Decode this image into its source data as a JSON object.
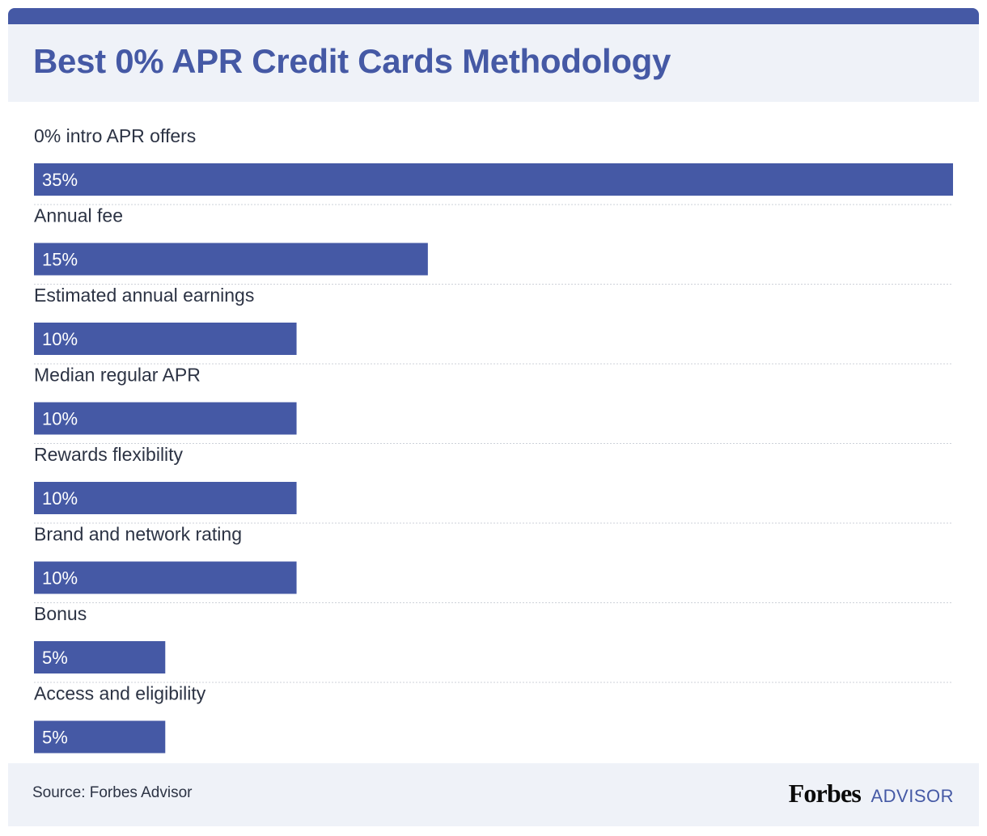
{
  "title": "Best 0% APR Credit Cards Methodology",
  "footer": {
    "source": "Source: Forbes Advisor",
    "brand_main": "Forbes",
    "brand_sub": "ADVISOR"
  },
  "colors": {
    "accent": "#4559a5",
    "panel": "#eff2f8",
    "text": "#2c3344",
    "divider": "#cdd1d9"
  },
  "chart_data": {
    "type": "bar",
    "orientation": "horizontal",
    "categories": [
      "0% intro APR offers",
      "Annual fee",
      "Estimated annual earnings",
      "Median regular APR",
      "Rewards flexibility",
      "Brand and network rating",
      "Bonus",
      "Access and eligibility"
    ],
    "values": [
      35,
      15,
      10,
      10,
      10,
      10,
      5,
      5
    ],
    "value_labels": [
      "35%",
      "15%",
      "10%",
      "10%",
      "10%",
      "10%",
      "5%",
      "5%"
    ],
    "unit": "%",
    "xlim": [
      0,
      35
    ],
    "grid": false,
    "legend": "none"
  }
}
